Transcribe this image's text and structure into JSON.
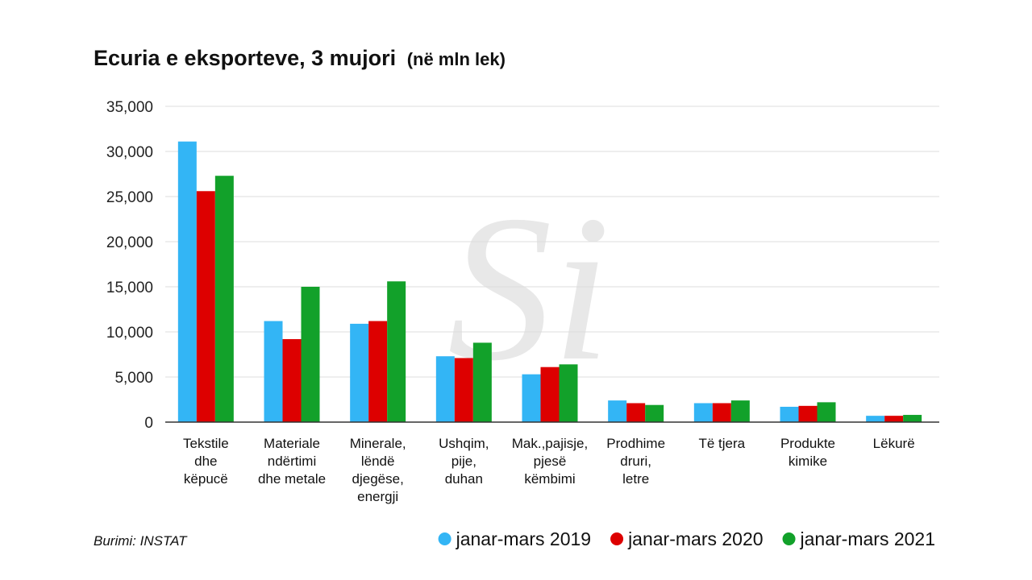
{
  "chart_data": {
    "type": "bar",
    "title": "Ecuria e eksporteve, 3 mujori",
    "subtitle": "(në mln lek)",
    "source": "Burimi: INSTAT",
    "categories": [
      [
        "Tekstile",
        "dhe",
        "këpucë"
      ],
      [
        "Materiale",
        "ndërtimi",
        "dhe metale"
      ],
      [
        "Minerale,",
        "lëndë",
        "djegëse,",
        "energji"
      ],
      [
        "Ushqim,",
        "pije,",
        "duhan"
      ],
      [
        "Mak.,pajisje,",
        "pjesë",
        "këmbimi"
      ],
      [
        "Prodhime",
        "druri,",
        "letre"
      ],
      [
        "Të tjera"
      ],
      [
        "Produkte",
        "kimike"
      ],
      [
        "Lëkurë"
      ]
    ],
    "series": [
      {
        "name": "janar-mars 2019",
        "color": "#33b5f5",
        "values": [
          31100,
          11200,
          10900,
          7300,
          5300,
          2400,
          2100,
          1700,
          700
        ]
      },
      {
        "name": "janar-mars 2020",
        "color": "#dd0000",
        "values": [
          25600,
          9200,
          11200,
          7100,
          6100,
          2100,
          2100,
          1800,
          700
        ]
      },
      {
        "name": "janar-mars 2021",
        "color": "#12a12a",
        "values": [
          27300,
          15000,
          15600,
          8800,
          6400,
          1900,
          2400,
          2200,
          800
        ]
      }
    ],
    "yticks": [
      "0",
      "5,000",
      "10,000",
      "15,000",
      "20,000",
      "25,000",
      "30,000",
      "35,000"
    ],
    "ylim": [
      0,
      35000
    ],
    "grid": true,
    "legend_position": "bottom-right"
  },
  "watermark": "Si"
}
